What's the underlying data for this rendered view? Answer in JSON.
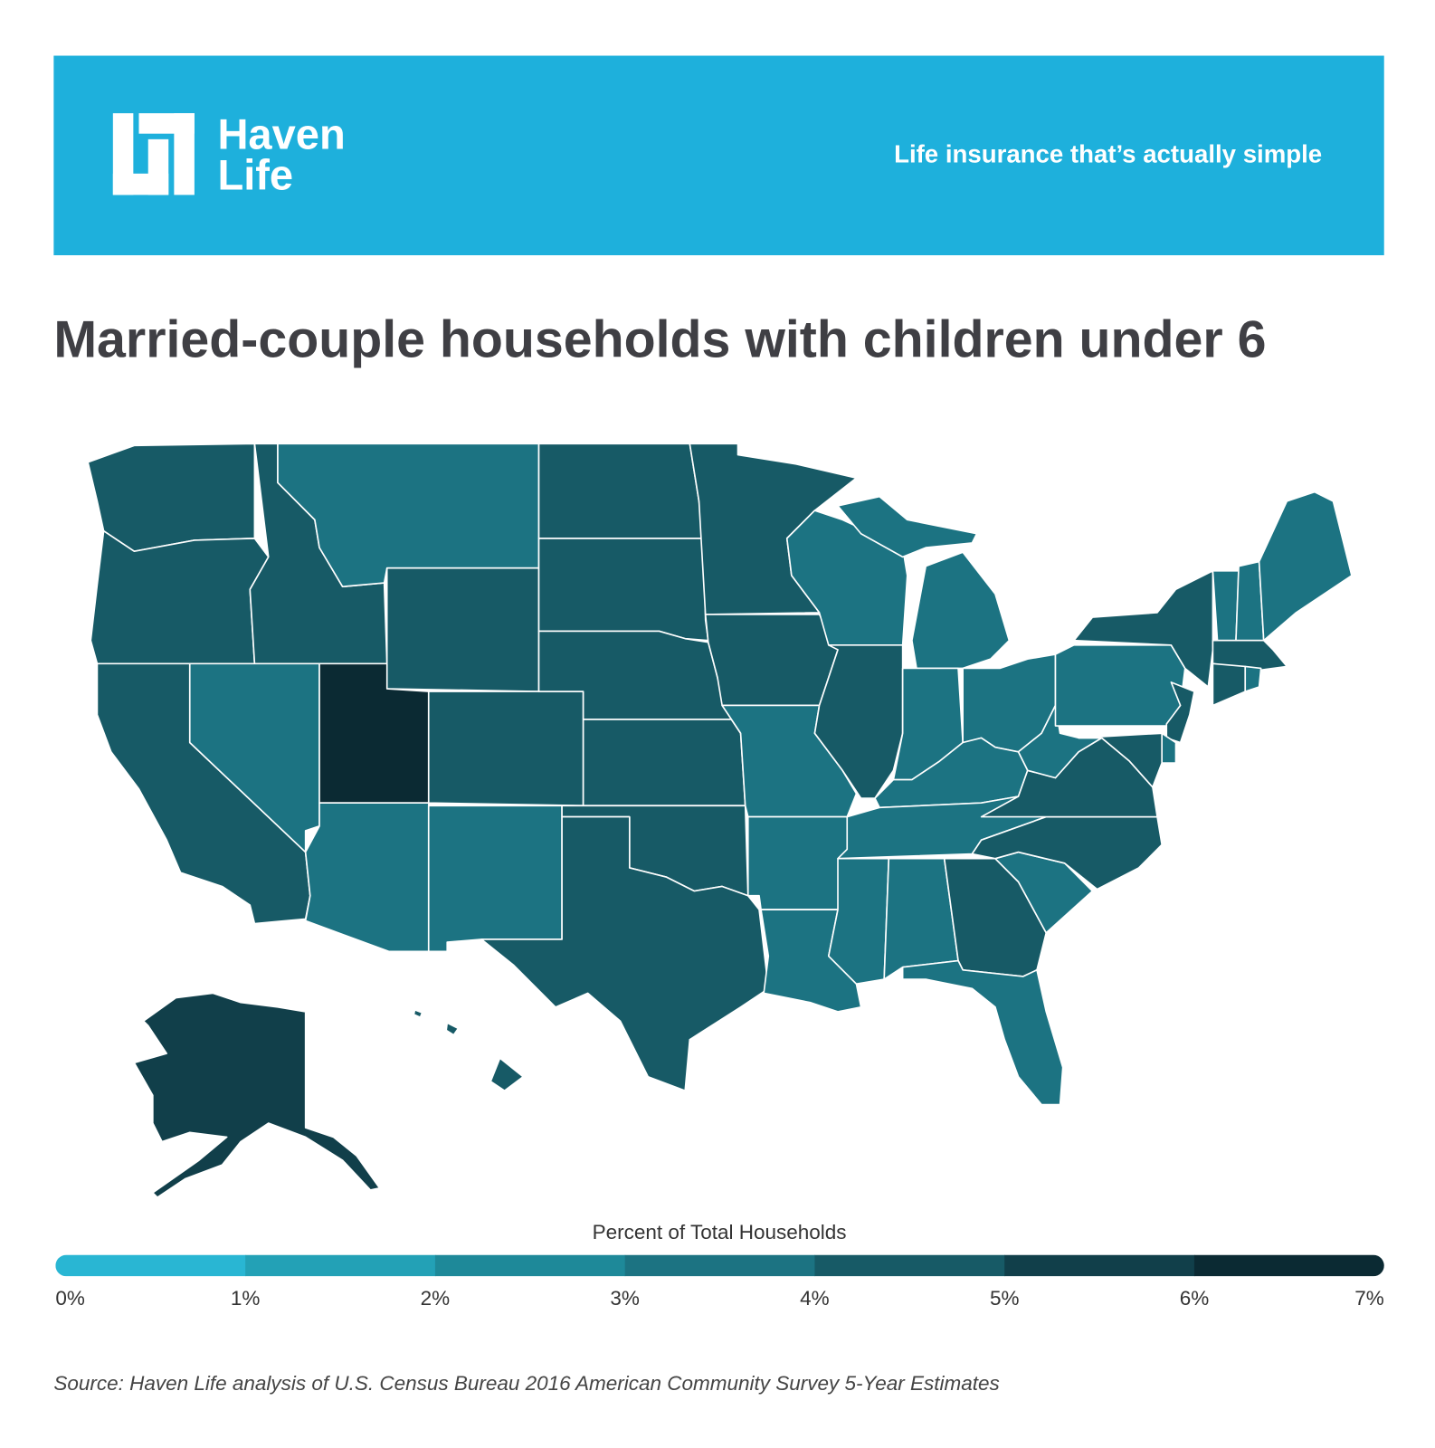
{
  "header": {
    "logo_lines": [
      "Haven",
      "Life"
    ],
    "tagline": "Life insurance that’s actually simple"
  },
  "chart_data": {
    "type": "choropleth",
    "title": "Married-couple households with children under 6",
    "values": [
      4.3,
      4.2,
      4.5,
      4.6,
      3.8,
      3.6,
      4.2,
      6.2,
      4.3,
      3.7,
      3.6,
      4.6,
      4.4,
      4.6,
      4.4,
      4.3,
      4.7,
      4.5,
      4.3,
      3.8,
      3.8,
      3.9,
      3.8,
      3.7,
      4.1,
      3.9,
      3.7,
      3.8,
      3.7,
      3.6,
      3.6,
      4.1,
      3.3,
      3.6,
      4.0,
      4.2,
      3.5,
      3.7,
      4.1,
      4.3,
      3.8,
      4.2,
      3.3,
      3.4,
      3.1,
      4.0,
      4.0,
      3.6,
      4.5,
      5.3
    ],
    "legend_title": "Percent of Total Households",
    "scale_lim": [
      0,
      7
    ],
    "scale_ticks": [
      {
        "value": 0,
        "label": "0%"
      },
      {
        "value": 1,
        "label": "1%"
      },
      {
        "value": 2,
        "label": "2%"
      },
      {
        "value": 3,
        "label": "3%"
      },
      {
        "value": 4,
        "label": "4%"
      },
      {
        "value": 5,
        "label": "5%"
      },
      {
        "value": 6,
        "label": "6%"
      },
      {
        "value": 7,
        "label": "7%"
      }
    ],
    "scale_colors": [
      "#29b6d3",
      "#23a1b6",
      "#1e8999",
      "#1c7382",
      "#175a66",
      "#113f4a",
      "#0b2a33"
    ],
    "source": "Source: Haven Life analysis of U.S. Census Bureau 2016 American Community Survey 5-Year Estimates"
  }
}
